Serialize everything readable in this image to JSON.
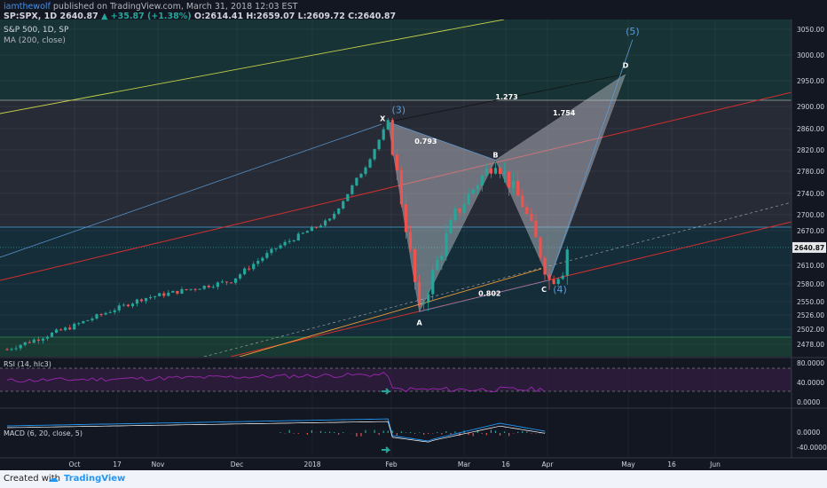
{
  "header": {
    "author": "iamthewolf",
    "published": "published on TradingView.com, March 31, 2018 12:03 EST",
    "ticker": "SP:SPX, 1D",
    "last": "2640.87",
    "change": "▲ +35.87 (+1.38%)",
    "ohlc": "O:2614.41 H:2659.07 L:2609.72 C:2640.87",
    "symbol_title": "S&P 500, 1D, SP",
    "ma_title": "MA (200, close)"
  },
  "footer": {
    "created_with": "Created with",
    "brand": "TradingView"
  },
  "colors": {
    "up": "#26a69a",
    "down": "#ef5350",
    "pattern": "#c7c9d1",
    "rsi": "#9c27b0",
    "macd": "#2196f3",
    "signal": "#ffffff",
    "ma200": "#f7a133"
  },
  "chart_data": [
    {
      "type": "candlestick",
      "title": "S&P 500, 1D, SP",
      "ylim": [
        2465,
        3070
      ],
      "y_ticks": [
        "3050.00",
        "3000.00",
        "2950.00",
        "2900.00",
        "2860.00",
        "2820.00",
        "2780.00",
        "2740.00",
        "2700.00",
        "2670.00",
        "2610.00",
        "2580.00",
        "2550.00",
        "2526.00",
        "2502.00",
        "2478.00"
      ],
      "last_price": "2640.87",
      "x_ticks": [
        "Oct",
        "17",
        "Nov",
        "Dec",
        "2018",
        "Feb",
        "Mar",
        "16",
        "Apr",
        "May",
        "16",
        "Jun"
      ],
      "pattern_points": [
        {
          "label": "X",
          "date_index": 85,
          "value": 2872
        },
        {
          "label": "A",
          "date_index": 92,
          "value": 2532
        },
        {
          "label": "B",
          "date_index": 109,
          "value": 2801
        },
        {
          "label": "C",
          "date_index": 121,
          "value": 2586
        },
        {
          "label": "D",
          "date_index": 138,
          "value": 2963
        }
      ],
      "ratios": [
        "0.793",
        "1.273",
        "1.754",
        "0.802"
      ],
      "waves": [
        "(3)",
        "(4)",
        "(5)"
      ]
    },
    {
      "type": "line",
      "title": "RSI (14, hlc3)",
      "y_ticks": [
        "80.0000",
        "40.0000",
        "0.0000"
      ],
      "levels": [
        70,
        30
      ]
    },
    {
      "type": "line",
      "title": "MACD (6, 20, close, 5)",
      "y_ticks": [
        "0.0000",
        "-40.0000"
      ]
    }
  ]
}
